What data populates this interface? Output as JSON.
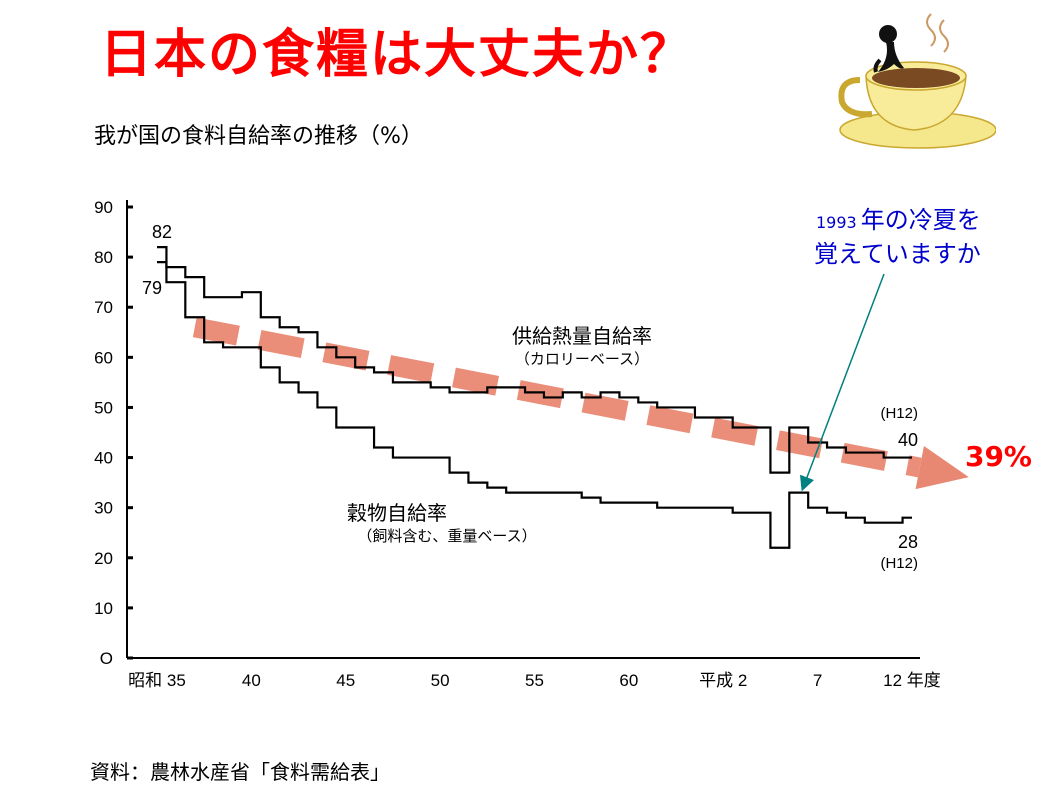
{
  "slide": {
    "title": "日本の食糧は大丈夫か？",
    "subtitle": "我が国の食料自給率の推移（%）",
    "source": "資料：農林水産省「食料需給表」"
  },
  "chart_data": {
    "type": "line",
    "ylim": [
      0,
      90
    ],
    "yticks": [
      "90",
      "80",
      "70",
      "60",
      "50",
      "40",
      "30",
      "20",
      "10",
      "O"
    ],
    "xlim": [
      1960,
      2000
    ],
    "xticks": [
      {
        "year": 1960,
        "label": "昭和 35"
      },
      {
        "year": 1965,
        "label": "40"
      },
      {
        "year": 1970,
        "label": "45"
      },
      {
        "year": 1975,
        "label": "50"
      },
      {
        "year": 1980,
        "label": "55"
      },
      {
        "year": 1985,
        "label": "60"
      },
      {
        "year": 1990,
        "label": "平成 2"
      },
      {
        "year": 1995,
        "label": "7"
      },
      {
        "year": 2000,
        "label": "12 年度"
      }
    ],
    "series": [
      {
        "name": "供給熱量自給率",
        "sublabel": "（カロリーベース）",
        "color": "#000000",
        "x": [
          1960,
          1961,
          1962,
          1963,
          1964,
          1965,
          1966,
          1967,
          1968,
          1969,
          1970,
          1971,
          1972,
          1973,
          1974,
          1975,
          1976,
          1977,
          1978,
          1979,
          1980,
          1981,
          1982,
          1983,
          1984,
          1985,
          1986,
          1987,
          1988,
          1989,
          1990,
          1991,
          1992,
          1993,
          1994,
          1995,
          1996,
          1997,
          1998,
          1999,
          2000
        ],
        "y": [
          79,
          78,
          76,
          72,
          72,
          73,
          68,
          66,
          65,
          62,
          60,
          58,
          57,
          55,
          55,
          54,
          53,
          53,
          54,
          54,
          53,
          52,
          53,
          52,
          53,
          52,
          51,
          50,
          50,
          48,
          48,
          46,
          46,
          37,
          46,
          43,
          42,
          41,
          41,
          40,
          40
        ]
      },
      {
        "name": "穀物自給率",
        "sublabel": "（飼料含む、重量ベース）",
        "color": "#000000",
        "x": [
          1960,
          1961,
          1962,
          1963,
          1964,
          1965,
          1966,
          1967,
          1968,
          1969,
          1970,
          1971,
          1972,
          1973,
          1974,
          1975,
          1976,
          1977,
          1978,
          1979,
          1980,
          1981,
          1982,
          1983,
          1984,
          1985,
          1986,
          1987,
          1988,
          1989,
          1990,
          1991,
          1992,
          1993,
          1994,
          1995,
          1996,
          1997,
          1998,
          1999,
          2000
        ],
        "y": [
          82,
          75,
          68,
          63,
          62,
          62,
          58,
          55,
          53,
          50,
          46,
          46,
          42,
          40,
          40,
          40,
          37,
          35,
          34,
          33,
          33,
          33,
          33,
          32,
          31,
          31,
          31,
          30,
          30,
          30,
          30,
          29,
          29,
          22,
          33,
          30,
          29,
          28,
          27,
          27,
          28
        ]
      }
    ],
    "annotations": [
      {
        "text": "82",
        "x": 1960,
        "y": 82
      },
      {
        "text": "79",
        "x": 1960,
        "y": 79
      },
      {
        "text": "(H12)",
        "x": 2000,
        "y": 40
      },
      {
        "text": "40",
        "x": 2000,
        "y": 40
      },
      {
        "text": "28",
        "x": 2000,
        "y": 28
      },
      {
        "text": "(H12)",
        "x": 2000,
        "y": 28
      }
    ],
    "trend": {
      "from": {
        "x": 1962,
        "y": 66
      },
      "to": {
        "x": 2002,
        "y": 38
      },
      "color": "#e8826a",
      "label": "39%",
      "label_color": "#ff0000"
    },
    "callout": {
      "year_prefix": "1993",
      "line1": "年の冷夏を",
      "line2": "覚えていますか",
      "color": "#0000cc",
      "arrow_color": "#008080",
      "target": {
        "x": 1994,
        "y": 41
      }
    }
  }
}
